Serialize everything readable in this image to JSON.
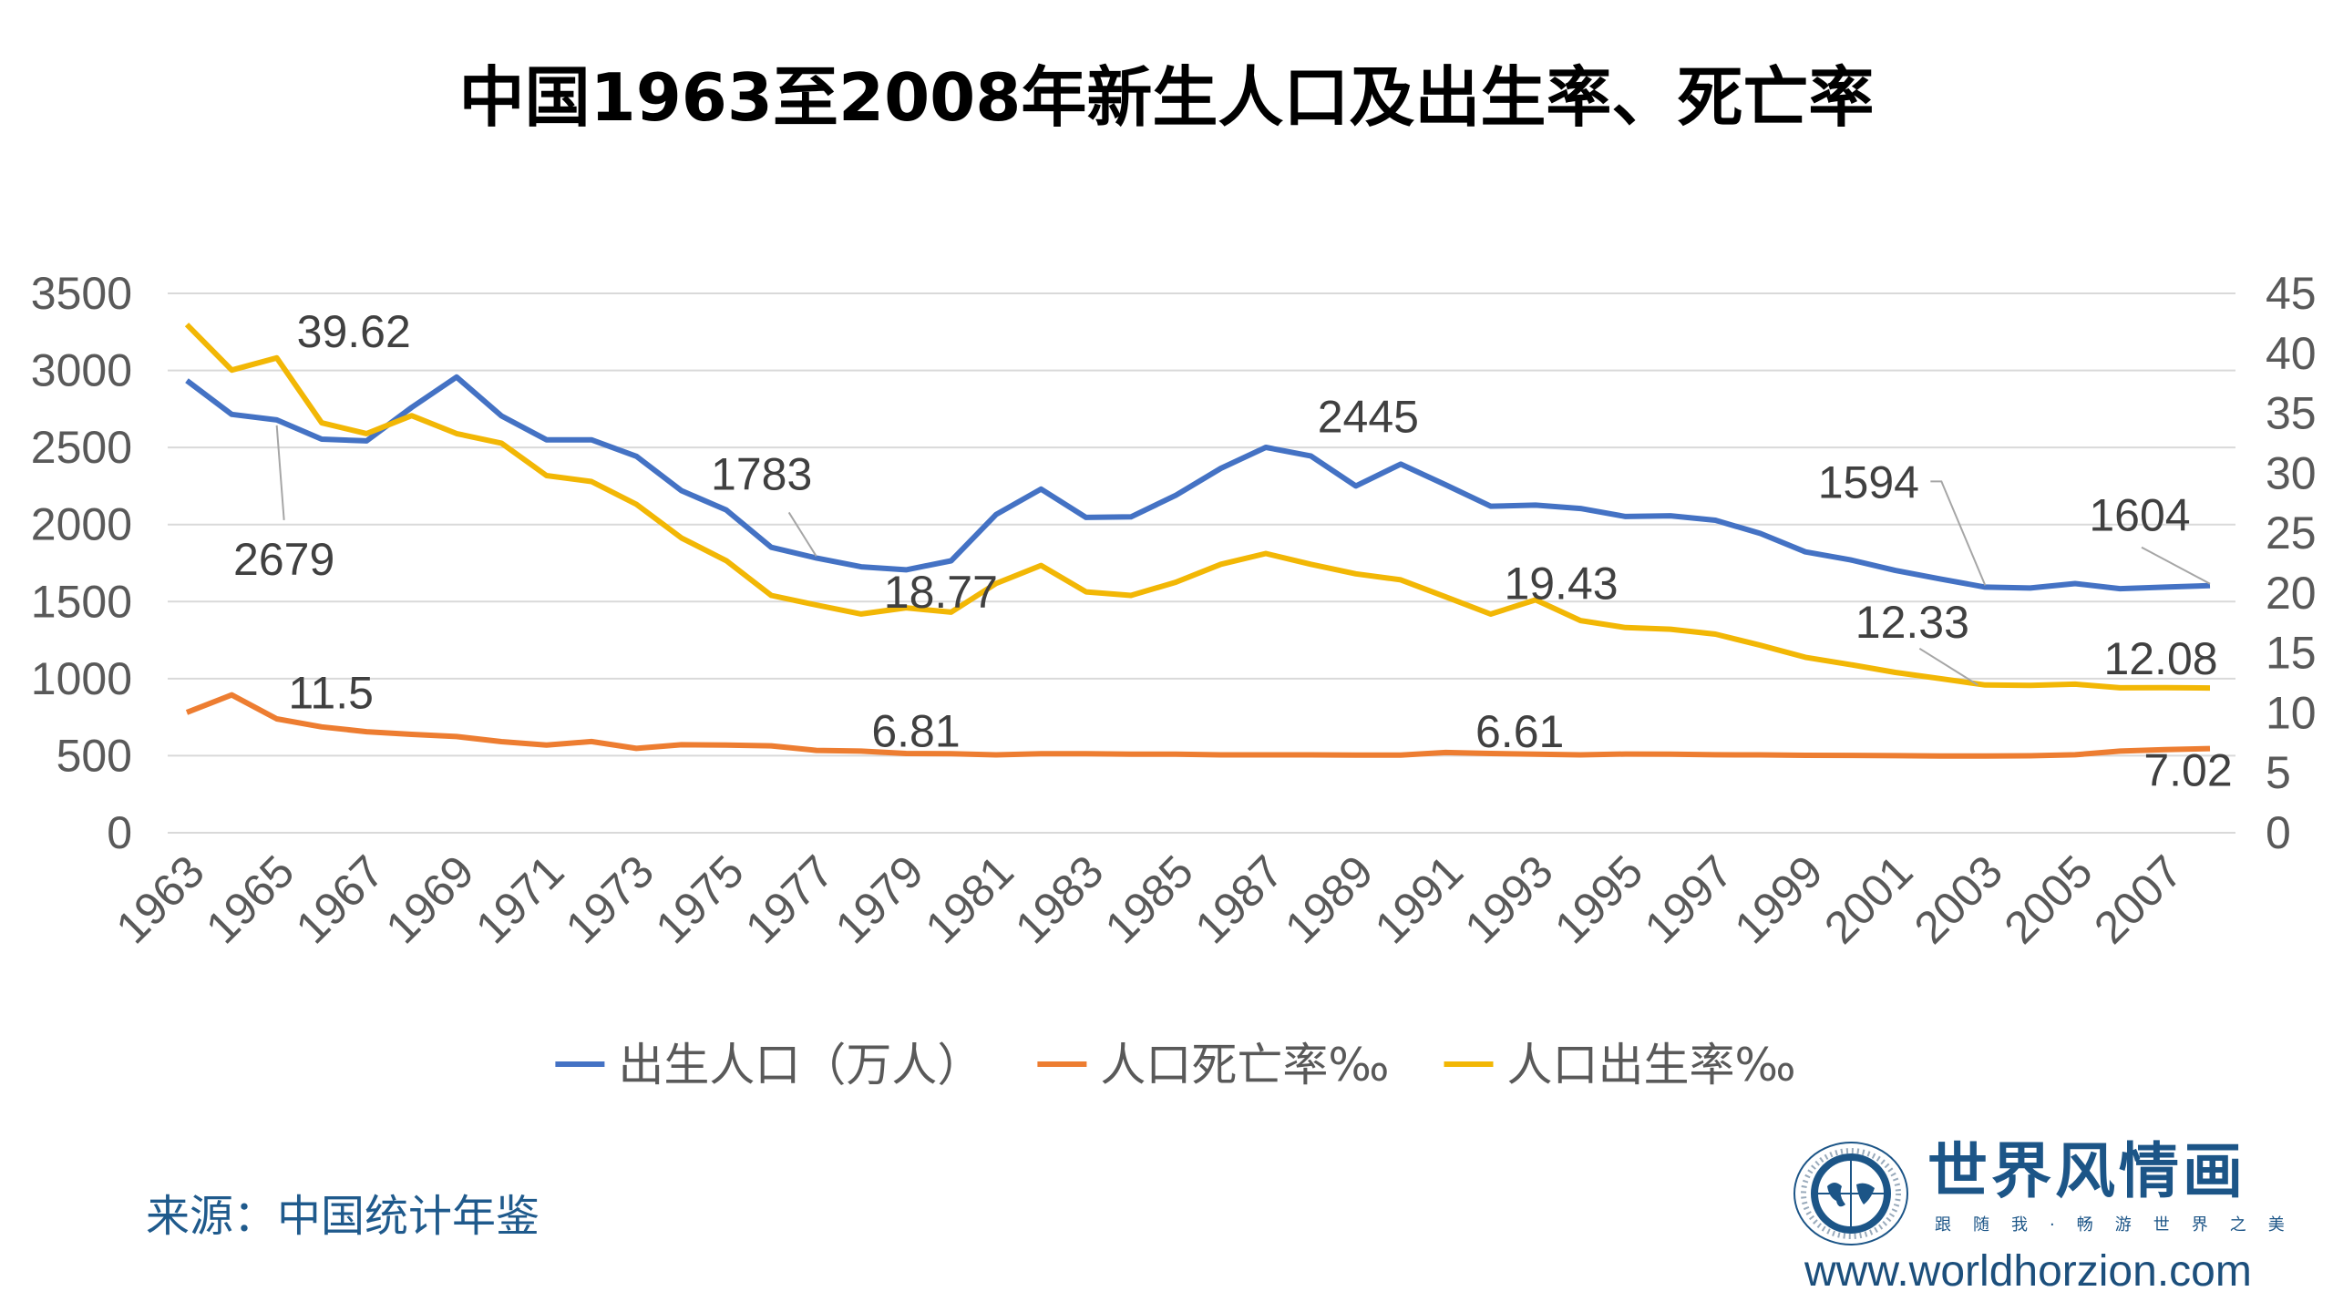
{
  "title": "中国1963至2008年新生人口及出生率、死亡率",
  "source": "来源：中国统计年鉴",
  "logo": {
    "name": "世界风情画",
    "slogan": "跟随我·畅游世界之美",
    "url": "www.worldhorzion.com",
    "icon": "compass-globe-icon"
  },
  "chart_data": {
    "type": "line",
    "title": "中国1963至2008年新生人口及出生率、死亡率",
    "x": [
      1963,
      1964,
      1965,
      1966,
      1967,
      1968,
      1969,
      1970,
      1971,
      1972,
      1973,
      1974,
      1975,
      1976,
      1977,
      1978,
      1979,
      1980,
      1981,
      1982,
      1983,
      1984,
      1985,
      1986,
      1987,
      1988,
      1989,
      1990,
      1991,
      1992,
      1993,
      1994,
      1995,
      1996,
      1997,
      1998,
      1999,
      2000,
      2001,
      2002,
      2003,
      2004,
      2005,
      2006,
      2007,
      2008
    ],
    "x_tick_labels": [
      "1963",
      "1965",
      "1967",
      "1969",
      "1971",
      "1973",
      "1975",
      "1977",
      "1979",
      "1981",
      "1983",
      "1985",
      "1987",
      "1989",
      "1991",
      "1993",
      "1995",
      "1997",
      "1999",
      "2001",
      "2003",
      "2005",
      "2007"
    ],
    "y_left": {
      "range": [
        0,
        3500
      ],
      "ticks": [
        "0",
        "500",
        "1000",
        "1500",
        "2000",
        "2500",
        "3000",
        "3500"
      ]
    },
    "y_right": {
      "range": [
        0,
        45
      ],
      "ticks": [
        "0",
        "5",
        "10",
        "15",
        "20",
        "25",
        "30",
        "35",
        "40",
        "45"
      ]
    },
    "grid": true,
    "legend_placement": "bottom",
    "series": [
      {
        "name": "出生人口（万人）",
        "axis": "left",
        "color": "#4472C4",
        "values": [
          2934,
          2715,
          2679,
          2554,
          2543,
          2760,
          2957,
          2705,
          2550,
          2550,
          2443,
          2220,
          2094,
          1852,
          1783,
          1726,
          1706,
          1765,
          2065,
          2230,
          2046,
          2050,
          2190,
          2365,
          2501,
          2445,
          2250,
          2392,
          2258,
          2119,
          2126,
          2104,
          2052,
          2057,
          2028,
          1942,
          1823,
          1771,
          1702,
          1647,
          1594,
          1588,
          1617,
          1584,
          1594,
          1604
        ]
      },
      {
        "name": "人口死亡率‰",
        "axis": "right",
        "color": "#ED7D31",
        "values": [
          10.04,
          11.5,
          9.5,
          8.83,
          8.43,
          8.21,
          8.03,
          7.6,
          7.32,
          7.61,
          7.04,
          7.34,
          7.32,
          7.25,
          6.87,
          6.81,
          6.61,
          6.6,
          6.5,
          6.6,
          6.6,
          6.55,
          6.55,
          6.5,
          6.5,
          6.5,
          6.48,
          6.48,
          6.7,
          6.61,
          6.55,
          6.5,
          6.57,
          6.56,
          6.51,
          6.5,
          6.46,
          6.45,
          6.43,
          6.41,
          6.4,
          6.42,
          6.51,
          6.81,
          6.93,
          7.02
        ]
      },
      {
        "name": "人口出生率‰",
        "axis": "right",
        "color": "#F2B705",
        "values": [
          42.4,
          38.6,
          39.62,
          34.2,
          33.3,
          34.8,
          33.3,
          32.5,
          29.8,
          29.3,
          27.4,
          24.6,
          22.7,
          19.8,
          19.0,
          18.25,
          18.77,
          18.4,
          20.8,
          22.3,
          20.1,
          19.8,
          20.9,
          22.4,
          23.3,
          22.4,
          21.6,
          21.1,
          19.68,
          18.24,
          19.43,
          17.7,
          17.12,
          16.98,
          16.57,
          15.64,
          14.64,
          14.03,
          13.38,
          12.86,
          12.33,
          12.29,
          12.4,
          12.09,
          12.1,
          12.08
        ]
      }
    ],
    "annotations": [
      {
        "series": 0,
        "year": 1965,
        "text": "2679"
      },
      {
        "series": 0,
        "year": 1977,
        "text": "1783"
      },
      {
        "series": 0,
        "year": 1988,
        "text": "2445"
      },
      {
        "series": 0,
        "year": 2003,
        "text": "1594"
      },
      {
        "series": 0,
        "year": 2008,
        "text": "1604"
      },
      {
        "series": 1,
        "year": 1964,
        "text": "11.5"
      },
      {
        "series": 1,
        "year": 1978,
        "text": "6.81"
      },
      {
        "series": 1,
        "year": 1992,
        "text": "6.61"
      },
      {
        "series": 1,
        "year": 2008,
        "text": "7.02"
      },
      {
        "series": 2,
        "year": 1965,
        "text": "39.62"
      },
      {
        "series": 2,
        "year": 1979,
        "text": "18.77"
      },
      {
        "series": 2,
        "year": 1993,
        "text": "19.43"
      },
      {
        "series": 2,
        "year": 2003,
        "text": "12.33"
      },
      {
        "series": 2,
        "year": 2008,
        "text": "12.08"
      }
    ]
  }
}
